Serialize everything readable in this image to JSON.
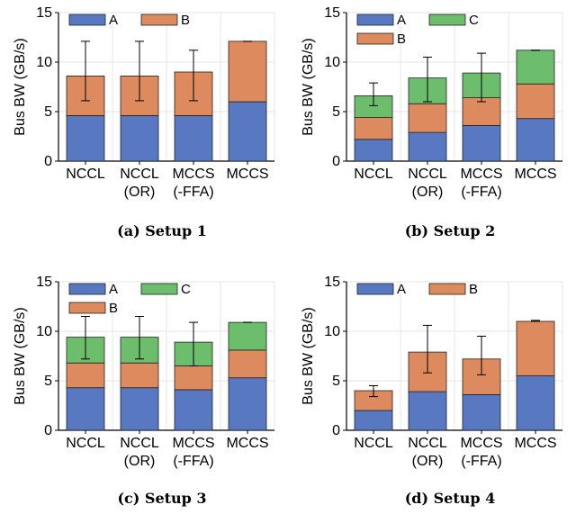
{
  "colors": {
    "A": "#5878c2",
    "B": "#dd8a5e",
    "C": "#6cbe6d",
    "grid": "#e6e6e6",
    "err": "#000000"
  },
  "chart_data": [
    {
      "type": "bar",
      "stacked": true,
      "title": "",
      "caption": "(a) Setup 1",
      "ylabel": "Bus BW (GB/s)",
      "xlabel": "",
      "ylim": [
        0,
        15
      ],
      "yticks": [
        0,
        5,
        10,
        15
      ],
      "grid": true,
      "legend_position": "top-left",
      "categories": [
        "NCCL",
        "NCCL\n(OR)",
        "MCCS\n(-FFA)",
        "MCCS"
      ],
      "series": [
        {
          "name": "A",
          "color_key": "A",
          "values": [
            4.6,
            4.6,
            4.6,
            6.0
          ]
        },
        {
          "name": "B",
          "color_key": "B",
          "values": [
            4.0,
            4.0,
            4.4,
            6.1
          ]
        }
      ],
      "error_bars": [
        [
          6.1,
          12.1
        ],
        [
          6.1,
          12.1
        ],
        [
          6.1,
          11.2
        ],
        [
          12.1,
          12.1
        ]
      ]
    },
    {
      "type": "bar",
      "stacked": true,
      "title": "",
      "caption": "(b) Setup 2",
      "ylabel": "Bus BW (GB/s)",
      "xlabel": "",
      "ylim": [
        0,
        15
      ],
      "yticks": [
        0,
        5,
        10,
        15
      ],
      "grid": true,
      "legend_position": "top-left",
      "categories": [
        "NCCL",
        "NCCL\n(OR)",
        "MCCS\n(-FFA)",
        "MCCS"
      ],
      "series": [
        {
          "name": "A",
          "color_key": "A",
          "values": [
            2.2,
            2.9,
            3.6,
            4.3
          ]
        },
        {
          "name": "B",
          "color_key": "B",
          "values": [
            2.2,
            2.9,
            2.8,
            3.5
          ]
        },
        {
          "name": "C",
          "color_key": "C",
          "values": [
            2.2,
            2.6,
            2.5,
            3.4
          ]
        }
      ],
      "error_bars": [
        [
          5.6,
          7.9
        ],
        [
          6.0,
          10.5
        ],
        [
          6.0,
          10.9
        ],
        [
          11.2,
          11.2
        ]
      ]
    },
    {
      "type": "bar",
      "stacked": true,
      "title": "",
      "caption": "(c) Setup 3",
      "ylabel": "Bus BW (GB/s)",
      "xlabel": "",
      "ylim": [
        0,
        15
      ],
      "yticks": [
        0,
        5,
        10,
        15
      ],
      "grid": true,
      "legend_position": "top-left",
      "categories": [
        "NCCL",
        "NCCL\n(OR)",
        "MCCS\n(-FFA)",
        "MCCS"
      ],
      "series": [
        {
          "name": "A",
          "color_key": "A",
          "values": [
            4.3,
            4.3,
            4.1,
            5.3
          ]
        },
        {
          "name": "B",
          "color_key": "B",
          "values": [
            2.5,
            2.5,
            2.4,
            2.8
          ]
        },
        {
          "name": "C",
          "color_key": "C",
          "values": [
            2.6,
            2.6,
            2.4,
            2.8
          ]
        }
      ],
      "error_bars": [
        [
          7.2,
          11.5
        ],
        [
          7.2,
          11.5
        ],
        [
          6.5,
          10.9
        ],
        [
          10.9,
          10.9
        ]
      ]
    },
    {
      "type": "bar",
      "stacked": true,
      "title": "",
      "caption": "(d) Setup 4",
      "ylabel": "Bus BW (GB/s)",
      "xlabel": "",
      "ylim": [
        0,
        15
      ],
      "yticks": [
        0,
        5,
        10,
        15
      ],
      "grid": true,
      "legend_position": "top-left",
      "categories": [
        "NCCL",
        "NCCL\n(OR)",
        "MCCS\n(-FFA)",
        "MCCS"
      ],
      "series": [
        {
          "name": "A",
          "color_key": "A",
          "values": [
            2.0,
            3.9,
            3.6,
            5.5
          ]
        },
        {
          "name": "B",
          "color_key": "B",
          "values": [
            2.0,
            4.0,
            3.6,
            5.5
          ]
        }
      ],
      "error_bars": [
        [
          3.4,
          4.5
        ],
        [
          5.8,
          10.6
        ],
        [
          5.6,
          9.5
        ],
        [
          11.0,
          11.1
        ]
      ]
    }
  ]
}
